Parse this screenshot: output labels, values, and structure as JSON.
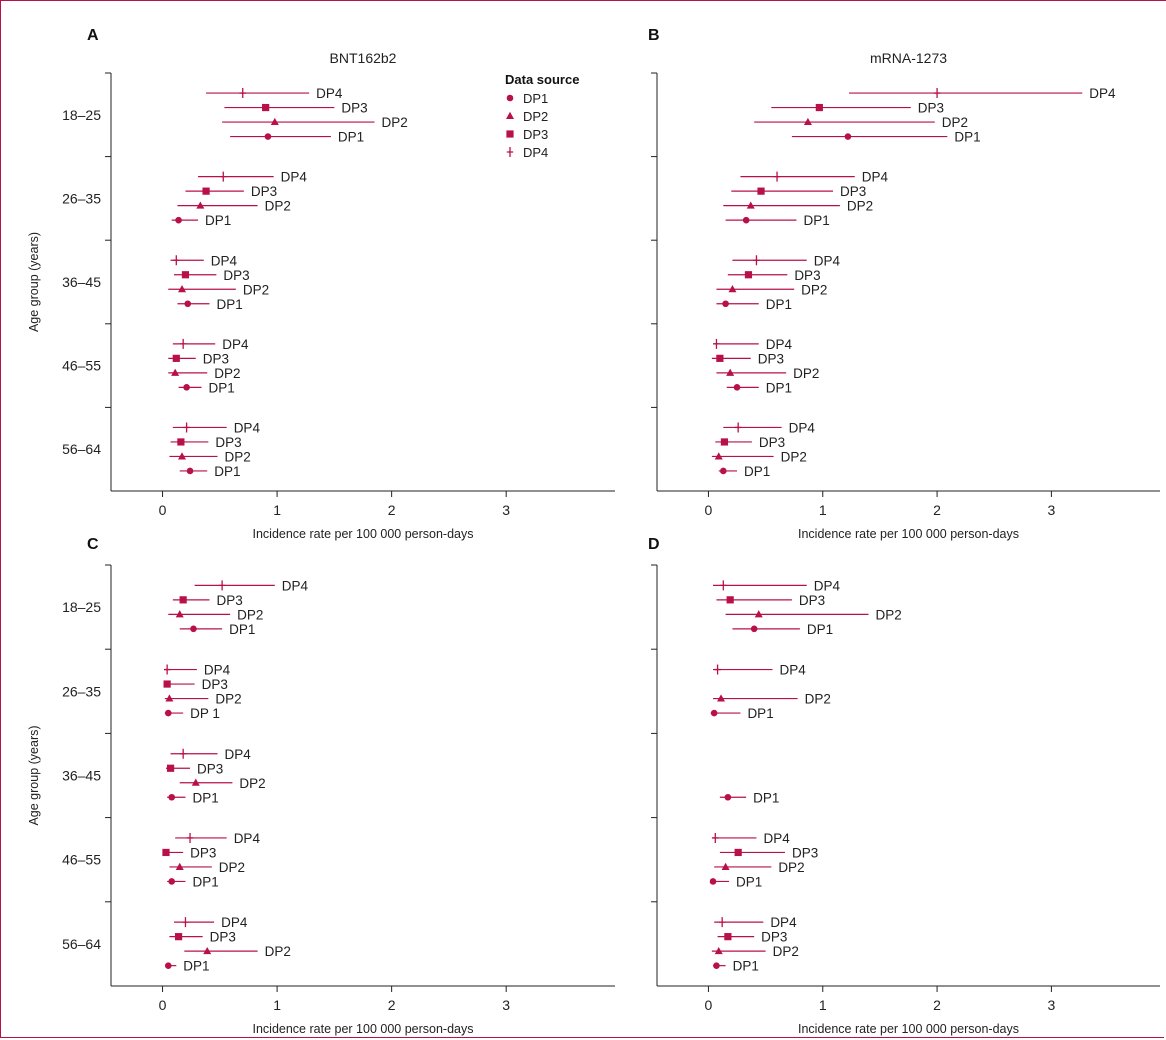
{
  "figure": {
    "ylabel": "Age group (years)",
    "xlabel": "Incidence rate per 100 000 person-days",
    "x_ticks": [
      0,
      1,
      2,
      3
    ],
    "xlim": [
      -0.45,
      3.95
    ],
    "age_groups": [
      "18–25",
      "26–35",
      "36–45",
      "46–55",
      "56–64"
    ],
    "accent_color": "#b8114a"
  },
  "legend": {
    "title": "Data source",
    "items": [
      {
        "label": "DP1",
        "marker": "circle"
      },
      {
        "label": "DP2",
        "marker": "triangle"
      },
      {
        "label": "DP3",
        "marker": "square"
      },
      {
        "label": "DP4",
        "marker": "plus"
      }
    ]
  },
  "chart_data": [
    {
      "panel": "A",
      "title": "BNT162b2",
      "type": "forest",
      "xlim": [
        -0.45,
        3.95
      ],
      "groups": [
        {
          "age": "18–25",
          "points": [
            {
              "source": "DP4",
              "label": "DP4",
              "est": 0.7,
              "lo": 0.38,
              "hi": 1.28
            },
            {
              "source": "DP3",
              "label": "DP3",
              "est": 0.9,
              "lo": 0.54,
              "hi": 1.5
            },
            {
              "source": "DP2",
              "label": "DP2",
              "est": 0.98,
              "lo": 0.52,
              "hi": 1.85
            },
            {
              "source": "DP1",
              "label": "DP1",
              "est": 0.92,
              "lo": 0.59,
              "hi": 1.47
            }
          ]
        },
        {
          "age": "26–35",
          "points": [
            {
              "source": "DP4",
              "label": "DP4",
              "est": 0.53,
              "lo": 0.31,
              "hi": 0.97
            },
            {
              "source": "DP3",
              "label": "DP3",
              "est": 0.38,
              "lo": 0.2,
              "hi": 0.71
            },
            {
              "source": "DP2",
              "label": "DP2",
              "est": 0.33,
              "lo": 0.13,
              "hi": 0.83
            },
            {
              "source": "DP1",
              "label": "DP1",
              "est": 0.14,
              "lo": 0.08,
              "hi": 0.31
            }
          ]
        },
        {
          "age": "36–45",
          "points": [
            {
              "source": "DP4",
              "label": "DP4",
              "est": 0.12,
              "lo": 0.07,
              "hi": 0.36
            },
            {
              "source": "DP3",
              "label": "DP3",
              "est": 0.2,
              "lo": 0.1,
              "hi": 0.47
            },
            {
              "source": "DP2",
              "label": "DP2",
              "est": 0.17,
              "lo": 0.05,
              "hi": 0.64
            },
            {
              "source": "DP1",
              "label": "DP1",
              "est": 0.22,
              "lo": 0.13,
              "hi": 0.41
            }
          ]
        },
        {
          "age": "46–55",
          "points": [
            {
              "source": "DP4",
              "label": "DP4",
              "est": 0.18,
              "lo": 0.09,
              "hi": 0.46
            },
            {
              "source": "DP3",
              "label": "DP3",
              "est": 0.12,
              "lo": 0.05,
              "hi": 0.29
            },
            {
              "source": "DP2",
              "label": "DP2",
              "est": 0.11,
              "lo": 0.05,
              "hi": 0.39
            },
            {
              "source": "DP1",
              "label": "DP1",
              "est": 0.21,
              "lo": 0.14,
              "hi": 0.34
            }
          ]
        },
        {
          "age": "56–64",
          "points": [
            {
              "source": "DP4",
              "label": "DP4",
              "est": 0.21,
              "lo": 0.09,
              "hi": 0.56
            },
            {
              "source": "DP3",
              "label": "DP3",
              "est": 0.16,
              "lo": 0.07,
              "hi": 0.4
            },
            {
              "source": "DP2",
              "label": "DP2",
              "est": 0.17,
              "lo": 0.06,
              "hi": 0.48
            },
            {
              "source": "DP1",
              "label": "DP1",
              "est": 0.24,
              "lo": 0.15,
              "hi": 0.39
            }
          ]
        }
      ]
    },
    {
      "panel": "B",
      "title": "mRNA-1273",
      "type": "forest",
      "xlim": [
        -0.45,
        3.95
      ],
      "groups": [
        {
          "age": "18–25",
          "points": [
            {
              "source": "DP4",
              "label": "DP4",
              "est": 2.0,
              "lo": 1.23,
              "hi": 3.27
            },
            {
              "source": "DP3",
              "label": "DP3",
              "est": 0.97,
              "lo": 0.55,
              "hi": 1.77
            },
            {
              "source": "DP2",
              "label": "DP2",
              "est": 0.87,
              "lo": 0.4,
              "hi": 1.98
            },
            {
              "source": "DP1",
              "label": "DP1",
              "est": 1.22,
              "lo": 0.73,
              "hi": 2.09
            }
          ]
        },
        {
          "age": "26–35",
          "points": [
            {
              "source": "DP4",
              "label": "DP4",
              "est": 0.6,
              "lo": 0.28,
              "hi": 1.28
            },
            {
              "source": "DP3",
              "label": "DP3",
              "est": 0.46,
              "lo": 0.2,
              "hi": 1.09
            },
            {
              "source": "DP2",
              "label": "DP2",
              "est": 0.37,
              "lo": 0.13,
              "hi": 1.15
            },
            {
              "source": "DP1",
              "label": "DP1",
              "est": 0.33,
              "lo": 0.15,
              "hi": 0.77
            }
          ]
        },
        {
          "age": "36–45",
          "points": [
            {
              "source": "DP4",
              "label": "DP4",
              "est": 0.42,
              "lo": 0.21,
              "hi": 0.86
            },
            {
              "source": "DP3",
              "label": "DP3",
              "est": 0.35,
              "lo": 0.17,
              "hi": 0.69
            },
            {
              "source": "DP2",
              "label": "DP2",
              "est": 0.21,
              "lo": 0.07,
              "hi": 0.75
            },
            {
              "source": "DP1",
              "label": "DP1",
              "est": 0.15,
              "lo": 0.07,
              "hi": 0.44
            }
          ]
        },
        {
          "age": "46–55",
          "points": [
            {
              "source": "DP4",
              "label": "DP4",
              "est": 0.07,
              "lo": 0.04,
              "hi": 0.44
            },
            {
              "source": "DP3",
              "label": "DP3",
              "est": 0.1,
              "lo": 0.03,
              "hi": 0.37
            },
            {
              "source": "DP2",
              "label": "DP2",
              "est": 0.19,
              "lo": 0.07,
              "hi": 0.68
            },
            {
              "source": "DP1",
              "label": "DP1",
              "est": 0.25,
              "lo": 0.16,
              "hi": 0.44
            }
          ]
        },
        {
          "age": "56–64",
          "points": [
            {
              "source": "DP4",
              "label": "DP4",
              "est": 0.26,
              "lo": 0.13,
              "hi": 0.64
            },
            {
              "source": "DP3",
              "label": "DP3",
              "est": 0.14,
              "lo": 0.06,
              "hi": 0.38
            },
            {
              "source": "DP2",
              "label": "DP2",
              "est": 0.09,
              "lo": 0.03,
              "hi": 0.57
            },
            {
              "source": "DP1",
              "label": "DP1",
              "est": 0.13,
              "lo": 0.09,
              "hi": 0.25
            }
          ]
        }
      ]
    },
    {
      "panel": "C",
      "title": "",
      "type": "forest",
      "xlim": [
        -0.45,
        3.95
      ],
      "groups": [
        {
          "age": "18–25",
          "points": [
            {
              "source": "DP4",
              "label": "DP4",
              "est": 0.52,
              "lo": 0.28,
              "hi": 0.98
            },
            {
              "source": "DP3",
              "label": "DP3",
              "est": 0.18,
              "lo": 0.09,
              "hi": 0.41
            },
            {
              "source": "DP2",
              "label": "DP2",
              "est": 0.15,
              "lo": 0.05,
              "hi": 0.59
            },
            {
              "source": "DP1",
              "label": "DP1",
              "est": 0.27,
              "lo": 0.15,
              "hi": 0.52
            }
          ]
        },
        {
          "age": "26–35",
          "points": [
            {
              "source": "DP4",
              "label": "DP4",
              "est": 0.04,
              "lo": 0.02,
              "hi": 0.3
            },
            {
              "source": "DP3",
              "label": "DP3",
              "est": 0.04,
              "lo": 0.01,
              "hi": 0.28
            },
            {
              "source": "DP2",
              "label": "DP2",
              "est": 0.06,
              "lo": 0.02,
              "hi": 0.4
            },
            {
              "source": "DP1",
              "label": "DP 1",
              "est": 0.05,
              "lo": 0.02,
              "hi": 0.18
            }
          ]
        },
        {
          "age": "36–45",
          "points": [
            {
              "source": "DP4",
              "label": "DP4",
              "est": 0.18,
              "lo": 0.07,
              "hi": 0.48
            },
            {
              "source": "DP3",
              "label": "DP3",
              "est": 0.07,
              "lo": 0.03,
              "hi": 0.24
            },
            {
              "source": "DP2",
              "label": "DP2",
              "est": 0.29,
              "lo": 0.15,
              "hi": 0.61
            },
            {
              "source": "DP1",
              "label": "DP1",
              "est": 0.08,
              "lo": 0.04,
              "hi": 0.2
            }
          ]
        },
        {
          "age": "46–55",
          "points": [
            {
              "source": "DP4",
              "label": "DP4",
              "est": 0.24,
              "lo": 0.11,
              "hi": 0.56
            },
            {
              "source": "DP3",
              "label": "DP3",
              "est": 0.03,
              "lo": 0.01,
              "hi": 0.18
            },
            {
              "source": "DP2",
              "label": "DP2",
              "est": 0.15,
              "lo": 0.06,
              "hi": 0.43
            },
            {
              "source": "DP1",
              "label": "DP1",
              "est": 0.08,
              "lo": 0.04,
              "hi": 0.2
            }
          ]
        },
        {
          "age": "56–64",
          "points": [
            {
              "source": "DP4",
              "label": "DP4",
              "est": 0.2,
              "lo": 0.1,
              "hi": 0.45
            },
            {
              "source": "DP3",
              "label": "DP3",
              "est": 0.14,
              "lo": 0.06,
              "hi": 0.35
            },
            {
              "source": "DP2",
              "label": "DP2",
              "est": 0.39,
              "lo": 0.19,
              "hi": 0.83
            },
            {
              "source": "DP1",
              "label": "DP1",
              "est": 0.05,
              "lo": 0.03,
              "hi": 0.12
            }
          ]
        }
      ]
    },
    {
      "panel": "D",
      "title": "",
      "type": "forest",
      "xlim": [
        -0.45,
        3.95
      ],
      "groups": [
        {
          "age": "18–25",
          "points": [
            {
              "source": "DP4",
              "label": "DP4",
              "est": 0.13,
              "lo": 0.04,
              "hi": 0.86
            },
            {
              "source": "DP3",
              "label": "DP3",
              "est": 0.19,
              "lo": 0.07,
              "hi": 0.73
            },
            {
              "source": "DP2",
              "label": "DP2",
              "est": 0.44,
              "lo": 0.15,
              "hi": 1.4
            },
            {
              "source": "DP1",
              "label": "DP1",
              "est": 0.4,
              "lo": 0.21,
              "hi": 0.8
            }
          ]
        },
        {
          "age": "26–35",
          "points": [
            {
              "source": "DP4",
              "label": "DP4",
              "est": 0.08,
              "lo": 0.04,
              "hi": 0.56
            },
            {
              "source": "DP2",
              "label": "DP2",
              "est": 0.11,
              "lo": 0.04,
              "hi": 0.78
            },
            {
              "source": "DP1",
              "label": "DP1",
              "est": 0.05,
              "lo": 0.02,
              "hi": 0.28
            }
          ]
        },
        {
          "age": "36–45",
          "points": [
            {
              "source": "DP1",
              "label": "DP1",
              "est": 0.17,
              "lo": 0.1,
              "hi": 0.33
            }
          ]
        },
        {
          "age": "46–55",
          "points": [
            {
              "source": "DP4",
              "label": "DP4",
              "est": 0.06,
              "lo": 0.03,
              "hi": 0.42
            },
            {
              "source": "DP3",
              "label": "DP3",
              "est": 0.26,
              "lo": 0.1,
              "hi": 0.67
            },
            {
              "source": "DP2",
              "label": "DP2",
              "est": 0.15,
              "lo": 0.05,
              "hi": 0.55
            },
            {
              "source": "DP1",
              "label": "DP1",
              "est": 0.04,
              "lo": 0.02,
              "hi": 0.18
            }
          ]
        },
        {
          "age": "56–64",
          "points": [
            {
              "source": "DP4",
              "label": "DP4",
              "est": 0.12,
              "lo": 0.05,
              "hi": 0.48
            },
            {
              "source": "DP3",
              "label": "DP3",
              "est": 0.17,
              "lo": 0.08,
              "hi": 0.4
            },
            {
              "source": "DP2",
              "label": "DP2",
              "est": 0.09,
              "lo": 0.03,
              "hi": 0.5
            },
            {
              "source": "DP1",
              "label": "DP1",
              "est": 0.07,
              "lo": 0.04,
              "hi": 0.15
            }
          ]
        }
      ]
    }
  ]
}
